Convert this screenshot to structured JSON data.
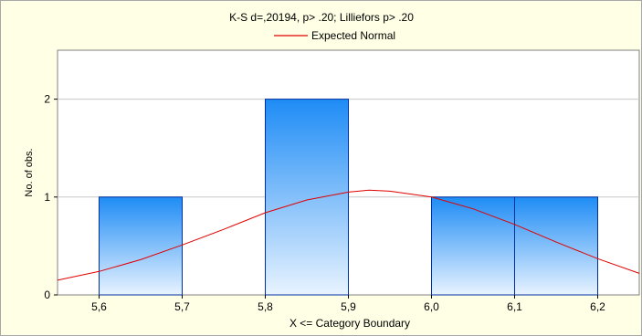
{
  "chart_data": {
    "type": "bar",
    "title": "K-S d=,20194, p> .20; Lilliefors p> .20",
    "legend": [
      {
        "label": "Expected Normal",
        "color": "#e00000"
      }
    ],
    "xlabel": "X <= Category Boundary",
    "ylabel": "No. of obs.",
    "x_tick_labels": [
      "5,6",
      "5,7",
      "5,8",
      "5,9",
      "6,0",
      "6,1",
      "6,2"
    ],
    "x_ticks": [
      5.6,
      5.7,
      5.8,
      5.9,
      6.0,
      6.1,
      6.2
    ],
    "xlim": [
      5.55,
      6.25
    ],
    "y_ticks": [
      0,
      1,
      2
    ],
    "ylim": [
      0,
      2.5
    ],
    "grid": true,
    "bins": [
      {
        "from": 5.6,
        "to": 5.7,
        "count": 1
      },
      {
        "from": 5.7,
        "to": 5.8,
        "count": 0
      },
      {
        "from": 5.8,
        "to": 5.9,
        "count": 2
      },
      {
        "from": 5.9,
        "to": 6.0,
        "count": 0
      },
      {
        "from": 6.0,
        "to": 6.1,
        "count": 1
      },
      {
        "from": 6.1,
        "to": 6.2,
        "count": 1
      }
    ],
    "expected_normal": {
      "curve_points": [
        [
          5.55,
          0.15
        ],
        [
          5.6,
          0.24
        ],
        [
          5.65,
          0.36
        ],
        [
          5.7,
          0.51
        ],
        [
          5.75,
          0.67
        ],
        [
          5.8,
          0.84
        ],
        [
          5.85,
          0.97
        ],
        [
          5.9,
          1.05
        ],
        [
          5.925,
          1.07
        ],
        [
          5.95,
          1.06
        ],
        [
          6.0,
          1.0
        ],
        [
          6.05,
          0.88
        ],
        [
          6.1,
          0.72
        ],
        [
          6.15,
          0.54
        ],
        [
          6.2,
          0.37
        ],
        [
          6.25,
          0.22
        ]
      ]
    },
    "colors": {
      "background": "#ffffe6",
      "plot_background": "#ffffff",
      "bar_top": "#1e8cf5",
      "bar_bottom": "#e8f3ff",
      "bar_edge": "#0030a0",
      "curve": "#e00000",
      "grid": "#c8c8c8"
    }
  }
}
